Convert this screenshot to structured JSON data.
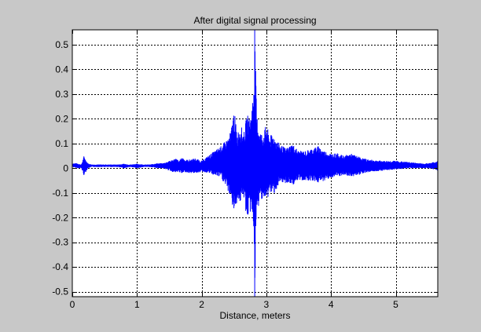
{
  "colors": {
    "figure_background": "#c8c8c8",
    "axes_background": "#ffffff",
    "signal": "#0000ff",
    "grid": "#000000",
    "text": "#000000"
  },
  "chart_data": {
    "type": "line",
    "title": "After digital signal processing",
    "xlabel": "Distance, meters",
    "ylabel": "",
    "xlim": [
      0,
      5.65
    ],
    "ylim": [
      -0.52,
      0.56
    ],
    "xticks": [
      0,
      1,
      2,
      3,
      4,
      5
    ],
    "xtick_labels": [
      "0",
      "1",
      "2",
      "3",
      "4",
      "5"
    ],
    "yticks": [
      0.5,
      0.4,
      0.3,
      0.2,
      0.1,
      0,
      -0.1,
      -0.2,
      -0.3,
      -0.4,
      -0.5
    ],
    "ytick_labels": [
      "0.5",
      "0.4",
      "0.3",
      "0.2",
      "0.1",
      "0",
      "-0.1",
      "-0.2",
      "-0.3",
      "-0.4",
      "-0.5"
    ],
    "grid": true,
    "grid_style": "dashed",
    "series": [
      {
        "color": "#0000ff",
        "envelope": {
          "x": [
            0,
            0.08,
            0.14,
            0.18,
            0.2,
            0.24,
            0.3,
            0.4,
            0.5,
            0.6,
            0.7,
            0.8,
            0.9,
            1.0,
            1.1,
            1.2,
            1.3,
            1.4,
            1.5,
            1.6,
            1.65,
            1.7,
            1.75,
            1.8,
            1.9,
            2.0,
            2.1,
            2.2,
            2.3,
            2.4,
            2.45,
            2.5,
            2.55,
            2.6,
            2.65,
            2.7,
            2.75,
            2.8,
            2.82,
            2.85,
            2.9,
            2.95,
            3.0,
            3.05,
            3.1,
            3.2,
            3.3,
            3.4,
            3.5,
            3.6,
            3.7,
            3.8,
            3.9,
            4.0,
            4.1,
            4.2,
            4.3,
            4.4,
            4.5,
            4.6,
            4.8,
            5.0,
            5.2,
            5.4,
            5.5,
            5.6,
            5.65
          ],
          "upper": [
            0.02,
            0.02,
            0.015,
            0.05,
            0.04,
            0.02,
            0.015,
            0.015,
            0.015,
            0.015,
            0.015,
            0.018,
            0.015,
            0.018,
            0.015,
            0.015,
            0.02,
            0.02,
            0.03,
            0.04,
            0.03,
            0.045,
            0.035,
            0.035,
            0.04,
            0.03,
            0.05,
            0.07,
            0.09,
            0.12,
            0.15,
            0.24,
            0.14,
            0.18,
            0.14,
            0.22,
            0.2,
            0.31,
            0.56,
            0.22,
            0.15,
            0.14,
            0.18,
            0.13,
            0.14,
            0.1,
            0.08,
            0.1,
            0.07,
            0.07,
            0.08,
            0.09,
            0.07,
            0.06,
            0.06,
            0.05,
            0.06,
            0.05,
            0.04,
            0.035,
            0.03,
            0.03,
            0.025,
            0.02,
            0.02,
            0.025,
            0.03
          ],
          "lower": [
            0.005,
            0.0,
            0.0,
            -0.03,
            -0.02,
            0.0,
            0.005,
            0.005,
            0.005,
            0.005,
            0.005,
            0.0,
            0.005,
            0.0,
            0.005,
            0.005,
            0.0,
            0.0,
            -0.01,
            -0.02,
            -0.015,
            -0.025,
            -0.015,
            -0.02,
            -0.02,
            -0.015,
            -0.02,
            -0.03,
            -0.04,
            -0.09,
            -0.12,
            -0.19,
            -0.13,
            -0.14,
            -0.12,
            -0.21,
            -0.18,
            -0.22,
            -0.52,
            -0.2,
            -0.13,
            -0.12,
            -0.14,
            -0.1,
            -0.11,
            -0.07,
            -0.06,
            -0.07,
            -0.05,
            -0.05,
            -0.05,
            -0.06,
            -0.05,
            -0.04,
            -0.035,
            -0.03,
            -0.035,
            -0.03,
            -0.02,
            -0.015,
            -0.01,
            -0.005,
            0.0,
            0.0,
            0.0,
            -0.005,
            -0.01
          ]
        }
      }
    ]
  }
}
